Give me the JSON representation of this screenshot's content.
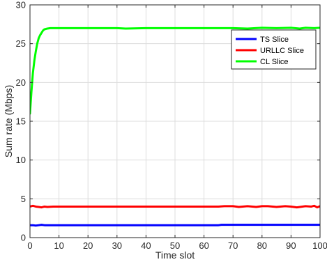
{
  "chart_data": {
    "type": "line",
    "title": "",
    "xlabel": "Time slot",
    "ylabel": "Sum rate (Mbps)",
    "xlim": [
      0,
      100
    ],
    "ylim": [
      0,
      30
    ],
    "xticks": [
      0,
      10,
      20,
      30,
      40,
      50,
      60,
      70,
      80,
      90,
      100
    ],
    "yticks": [
      0,
      5,
      10,
      15,
      20,
      25,
      30
    ],
    "grid": true,
    "legend_position": "top-right",
    "series": [
      {
        "name": "TS Slice",
        "color": "#0000ff",
        "x": [
          0,
          1,
          2,
          3,
          4,
          5,
          6,
          8,
          10,
          20,
          30,
          40,
          50,
          60,
          65,
          66,
          70,
          80,
          90,
          100
        ],
        "y": [
          1.6,
          1.6,
          1.55,
          1.6,
          1.65,
          1.6,
          1.6,
          1.6,
          1.6,
          1.6,
          1.6,
          1.6,
          1.6,
          1.6,
          1.6,
          1.65,
          1.65,
          1.65,
          1.65,
          1.65
        ]
      },
      {
        "name": "URLLC Slice",
        "color": "#ff0000",
        "x": [
          0,
          1,
          2,
          3,
          4,
          5,
          6,
          8,
          10,
          20,
          30,
          40,
          50,
          60,
          65,
          67,
          70,
          72,
          75,
          78,
          80,
          82,
          85,
          88,
          90,
          92,
          95,
          97,
          98,
          99,
          100
        ],
        "y": [
          4.0,
          4.1,
          4.0,
          3.95,
          3.9,
          4.0,
          3.95,
          4.0,
          4.0,
          4.0,
          4.0,
          4.0,
          4.0,
          4.0,
          4.0,
          4.05,
          4.05,
          3.95,
          4.05,
          3.95,
          4.05,
          4.05,
          3.95,
          4.05,
          4.0,
          3.9,
          4.05,
          4.0,
          4.1,
          3.9,
          4.05
        ]
      },
      {
        "name": "CL Slice",
        "color": "#00ff00",
        "x": [
          0,
          0.5,
          1,
          1.5,
          2,
          2.5,
          3,
          3.5,
          4,
          4.5,
          5,
          6,
          7,
          8,
          10,
          20,
          30,
          33,
          40,
          50,
          60,
          65,
          70,
          75,
          80,
          85,
          90,
          93,
          95,
          98,
          100
        ],
        "y": [
          16.0,
          18.8,
          21.2,
          22.8,
          24.0,
          25.0,
          25.7,
          26.1,
          26.4,
          26.7,
          26.85,
          26.95,
          27.0,
          27.0,
          27.0,
          27.0,
          27.0,
          26.95,
          27.0,
          27.0,
          27.0,
          27.0,
          27.0,
          26.95,
          27.05,
          27.0,
          27.05,
          26.95,
          27.05,
          27.0,
          27.05
        ]
      }
    ]
  }
}
